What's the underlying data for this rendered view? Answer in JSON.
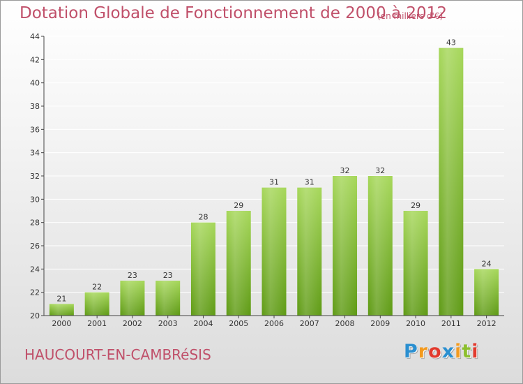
{
  "title": "Dotation Globale de Fonctionnement de 2000 à 2012",
  "subtitle": "(en milliers d'€)",
  "place": "HAUCOURT-EN-CAMBRéSIS",
  "logo": {
    "letters": [
      "P",
      "r",
      "o",
      "x",
      "i",
      "t",
      "i"
    ],
    "colors": [
      "#2a8fd0",
      "#f39a1e",
      "#e23a2e",
      "#2a8fd0",
      "#f39a1e",
      "#8cbf2e",
      "#e23a2e"
    ]
  },
  "colors": {
    "title": "#c0506a",
    "bar_light": "#a6d75a",
    "bar_dark": "#5e9a14",
    "axis": "#444444",
    "grid": "#ffffff"
  },
  "chart_data": {
    "type": "bar",
    "categories": [
      "2000",
      "2001",
      "2002",
      "2003",
      "2004",
      "2005",
      "2006",
      "2007",
      "2008",
      "2009",
      "2010",
      "2011",
      "2012"
    ],
    "values": [
      21,
      22,
      23,
      23,
      28,
      29,
      31,
      31,
      32,
      32,
      29,
      43,
      24
    ],
    "ylim": [
      20,
      44
    ],
    "yticks": [
      20,
      22,
      24,
      26,
      28,
      30,
      32,
      34,
      36,
      38,
      40,
      42,
      44
    ],
    "grid": true,
    "xlabel": "",
    "ylabel": ""
  }
}
